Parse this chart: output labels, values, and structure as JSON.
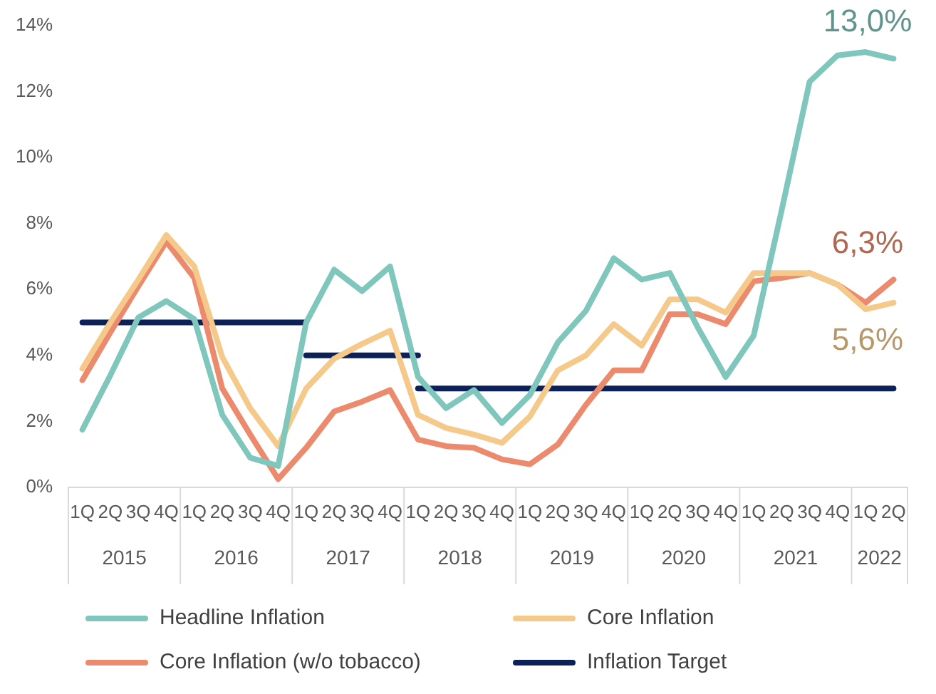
{
  "chart_data": {
    "type": "line",
    "categories": [
      "1Q",
      "2Q",
      "3Q",
      "4Q",
      "1Q",
      "2Q",
      "3Q",
      "4Q",
      "1Q",
      "2Q",
      "3Q",
      "4Q",
      "1Q",
      "2Q",
      "3Q",
      "4Q",
      "1Q",
      "2Q",
      "3Q",
      "4Q",
      "1Q",
      "2Q",
      "3Q",
      "4Q",
      "1Q",
      "2Q",
      "3Q",
      "4Q",
      "1Q",
      "2Q"
    ],
    "annotations": [
      "2015",
      "2016",
      "2017",
      "2018",
      "2019",
      "2020",
      "2021",
      "2022"
    ],
    "series": [
      {
        "name": "Headline Inflation",
        "color": "#7fc6bc",
        "values": [
          1.75,
          3.4,
          5.15,
          5.65,
          5.1,
          2.2,
          0.9,
          0.65,
          5.0,
          6.6,
          5.95,
          6.7,
          3.35,
          2.4,
          2.95,
          1.95,
          2.8,
          4.4,
          5.35,
          6.95,
          6.3,
          6.5,
          4.85,
          3.35,
          4.6,
          8.4,
          12.3,
          13.1,
          13.2,
          13.0
        ],
        "value_labels": [
          null,
          null,
          null,
          null,
          null,
          null,
          null,
          null,
          null,
          null,
          null,
          null,
          null,
          null,
          null,
          null,
          null,
          null,
          null,
          null,
          null,
          null,
          null,
          null,
          null,
          null,
          null,
          null,
          null,
          "13,0%"
        ]
      },
      {
        "name": "Core Inflation",
        "color": "#f5c98a",
        "values": [
          3.6,
          5.0,
          6.3,
          7.65,
          6.7,
          3.95,
          2.4,
          1.25,
          3.0,
          3.9,
          4.35,
          4.75,
          2.2,
          1.8,
          1.6,
          1.35,
          2.15,
          3.55,
          4.0,
          4.95,
          4.3,
          5.7,
          5.7,
          5.3,
          6.5,
          6.5,
          6.5,
          6.15,
          5.4,
          5.6
        ],
        "value_labels": [
          null,
          null,
          null,
          null,
          null,
          null,
          null,
          null,
          null,
          null,
          null,
          null,
          null,
          null,
          null,
          null,
          null,
          null,
          null,
          null,
          null,
          null,
          null,
          null,
          null,
          null,
          null,
          null,
          null,
          "5,6%"
        ]
      },
      {
        "name": "Core Inflation (w/o tobacco)",
        "color": "#ec8a6e",
        "values": [
          3.25,
          4.7,
          6.1,
          7.45,
          6.35,
          3.0,
          1.6,
          0.25,
          1.2,
          2.3,
          2.6,
          2.95,
          1.45,
          1.25,
          1.2,
          0.85,
          0.7,
          1.3,
          2.5,
          3.55,
          3.55,
          5.25,
          5.25,
          4.95,
          6.25,
          6.35,
          6.5,
          6.15,
          5.6,
          6.3
        ],
        "value_labels": [
          null,
          null,
          null,
          null,
          null,
          null,
          null,
          null,
          null,
          null,
          null,
          null,
          null,
          null,
          null,
          null,
          null,
          null,
          null,
          null,
          null,
          null,
          null,
          null,
          null,
          null,
          null,
          null,
          null,
          "6,3%"
        ]
      },
      {
        "name": "Inflation Target",
        "color": "#0b2158",
        "values": [
          5,
          5,
          5,
          5,
          5,
          5,
          5,
          5,
          5,
          null,
          null,
          null,
          null,
          null,
          null,
          null,
          null,
          null,
          null,
          null,
          null,
          null,
          null,
          null,
          null,
          null,
          null,
          null,
          null,
          null
        ]
      },
      {
        "color": "#0b2158",
        "values": [
          null,
          null,
          null,
          null,
          null,
          null,
          null,
          null,
          4,
          4,
          4,
          4,
          4,
          null,
          null,
          null,
          null,
          null,
          null,
          null,
          null,
          null,
          null,
          null,
          null,
          null,
          null,
          null,
          null,
          null
        ]
      },
      {
        "color": "#0b2158",
        "values": [
          null,
          null,
          null,
          null,
          null,
          null,
          null,
          null,
          null,
          null,
          null,
          null,
          3,
          3,
          3,
          3,
          3,
          3,
          3,
          3,
          3,
          3,
          3,
          3,
          3,
          3,
          3,
          3,
          3,
          3
        ]
      }
    ],
    "ylim": [
      0,
      14
    ],
    "yticks": [
      {
        "value": 0,
        "label": "0%"
      },
      {
        "value": 2,
        "label": "2%"
      },
      {
        "value": 4,
        "label": "4%"
      },
      {
        "value": 6,
        "label": "6%"
      },
      {
        "value": 8,
        "label": "8%"
      },
      {
        "value": 10,
        "label": "10%"
      },
      {
        "value": 12,
        "label": "12%"
      },
      {
        "value": 14,
        "label": "14%"
      }
    ],
    "grid": false,
    "legend": "bottom",
    "marker": "none",
    "line_style": "solid"
  }
}
